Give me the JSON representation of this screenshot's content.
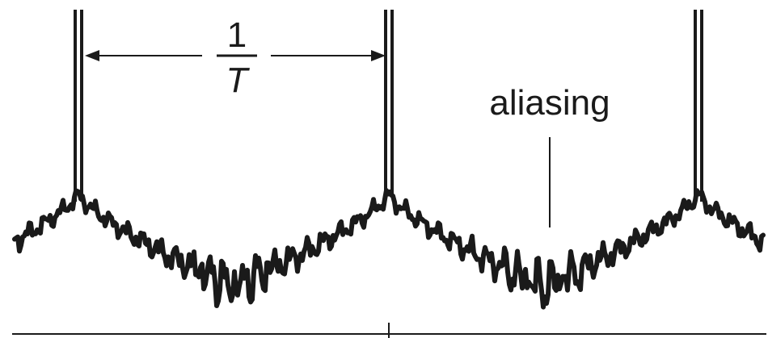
{
  "period_label": {
    "numerator": "1",
    "denominator": "T"
  },
  "annotation": "aliasing",
  "colors": {
    "ink": "#1a1a1a",
    "background": "#ffffff"
  }
}
